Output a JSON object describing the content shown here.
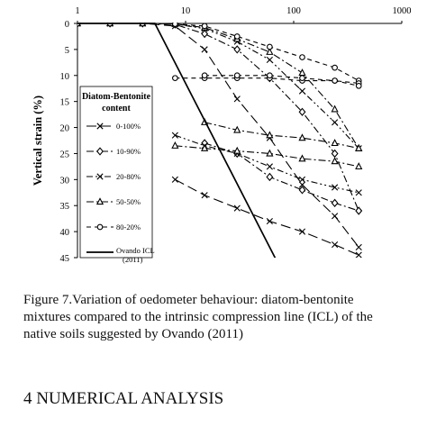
{
  "chart_data": {
    "type": "line",
    "x_scale": "log",
    "xlim": [
      1,
      1000
    ],
    "x_ticks": [
      1,
      10,
      100,
      1000
    ],
    "x_tick_labels": [
      "1",
      "10",
      "100",
      "1000"
    ],
    "ylim": [
      0,
      45
    ],
    "y_inverted": true,
    "y_ticks": [
      0,
      5,
      10,
      15,
      20,
      25,
      30,
      35,
      40,
      45
    ],
    "y_tick_labels": [
      "0",
      "5",
      "10",
      "15",
      "20",
      "25",
      "30",
      "35",
      "40",
      "45"
    ],
    "ylabel": "Vertical strain (%)",
    "legend_title": "Diatom-Bentonite content",
    "legend_position": "left",
    "series": [
      {
        "name": "0-100%",
        "marker": "cross",
        "dash": "long-dash",
        "branches": [
          {
            "x": [
              1,
              2,
              4,
              8,
              15,
              30,
              60,
              120,
              240,
              400
            ],
            "y": [
              0,
              0,
              0,
              0.5,
              5,
              14.5,
              22,
              31,
              37,
              43
            ]
          },
          {
            "x": [
              8,
              15,
              30,
              60,
              120,
              240,
              400
            ],
            "y": [
              30,
              33,
              35.5,
              38,
              40,
              42.5,
              44.5
            ]
          }
        ]
      },
      {
        "name": "10-90%",
        "marker": "diamond-open",
        "dash": "dash-dot",
        "branches": [
          {
            "x": [
              1,
              2,
              4,
              8,
              15,
              30,
              60,
              120,
              240,
              400
            ],
            "y": [
              0,
              0,
              0,
              0.2,
              2,
              5,
              10.5,
              17,
              25,
              36
            ]
          },
          {
            "x": [
              15,
              30,
              60,
              120,
              240,
              400
            ],
            "y": [
              23,
              25,
              29.5,
              32,
              34.5,
              36
            ]
          }
        ]
      },
      {
        "name": "20-80%",
        "marker": "cross",
        "dash": "dash-dot-dot",
        "branches": [
          {
            "x": [
              1,
              2,
              4,
              8,
              15,
              30,
              60,
              120,
              240,
              400
            ],
            "y": [
              0,
              0,
              0,
              0.1,
              1,
              3.5,
              7,
              13,
              19,
              24
            ]
          },
          {
            "x": [
              8,
              15,
              30,
              60,
              120,
              240,
              400
            ],
            "y": [
              21.5,
              23.5,
              25,
              27.5,
              30,
              31.5,
              32.5
            ]
          }
        ]
      },
      {
        "name": "50-50%",
        "marker": "triangle-open",
        "dash": "dash-dot",
        "branches": [
          {
            "x": [
              1,
              2,
              4,
              8,
              15,
              30,
              60,
              120,
              240,
              400
            ],
            "y": [
              0,
              0,
              0,
              0.1,
              0.8,
              3,
              5.5,
              9.5,
              16.5,
              24
            ]
          },
          {
            "x": [
              8,
              15,
              30,
              60,
              120,
              240,
              400
            ],
            "y": [
              23.5,
              24,
              24.5,
              25,
              26,
              26.5,
              27.5
            ]
          },
          {
            "x": [
              15,
              30,
              60,
              120,
              240,
              400
            ],
            "y": [
              19,
              20.5,
              21.5,
              22,
              23,
              24
            ]
          }
        ]
      },
      {
        "name": "80-20%",
        "marker": "circle-open",
        "dash": "dashed",
        "branches": [
          {
            "x": [
              1,
              2,
              4,
              8,
              15,
              30,
              60,
              120,
              240,
              400
            ],
            "y": [
              0,
              0,
              0,
              0.1,
              0.5,
              2.5,
              4.5,
              6.5,
              8.5,
              11
            ]
          },
          {
            "x": [
              8,
              15,
              30,
              60,
              120,
              240,
              400
            ],
            "y": [
              10.5,
              10.5,
              10.5,
              10.5,
              11,
              11,
              11.5
            ]
          },
          {
            "x": [
              15,
              30,
              60,
              120,
              240,
              400
            ],
            "y": [
              10,
              10,
              10,
              10.5,
              11,
              12
            ]
          }
        ]
      },
      {
        "name": "Ovando ICL (2011)",
        "marker": "none",
        "dash": "solid",
        "branches": [
          {
            "x": [
              1,
              2,
              4,
              5.2,
              100
            ],
            "y": [
              0,
              0,
              0,
              0,
              52
            ]
          }
        ]
      }
    ]
  },
  "caption": {
    "line1": "Figure 7.Variation of oedometer behaviour: diatom-bentonite",
    "line2": "mixtures compared to the intrinsic compression line (ICL) of the",
    "line3": "native soils suggested by Ovando (2011)"
  },
  "section_heading": "4   NUMERICAL ANALYSIS"
}
